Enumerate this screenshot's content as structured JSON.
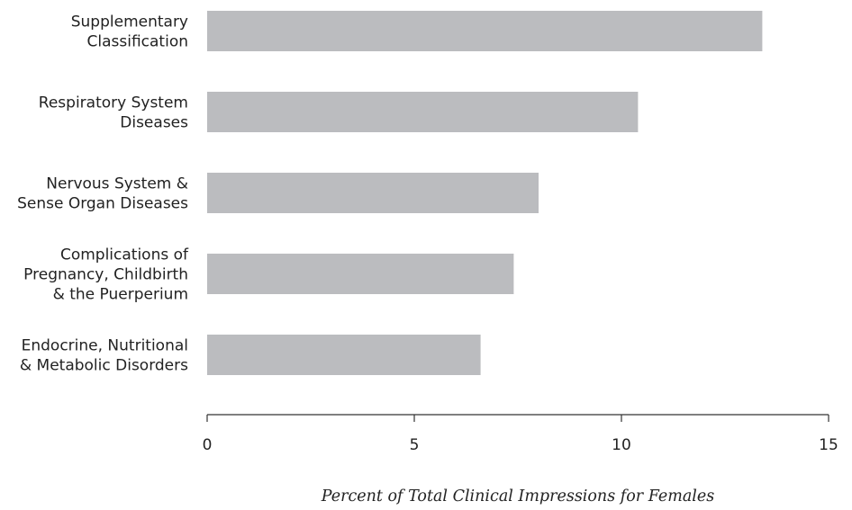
{
  "chart_data": {
    "type": "bar",
    "orientation": "horizontal",
    "categories": [
      [
        "Supplementary",
        "Classification"
      ],
      [
        "Respiratory System",
        "Diseases"
      ],
      [
        "Nervous System &",
        "Sense Organ Diseases"
      ],
      [
        "Complications of",
        "Pregnancy, Childbirth",
        "& the Puerperium"
      ],
      [
        "Endocrine, Nutritional",
        "& Metabolic Disorders"
      ]
    ],
    "values": [
      13.4,
      10.4,
      8.0,
      7.4,
      6.6
    ],
    "xlim": [
      0,
      15
    ],
    "xticks": [
      "0",
      "5",
      "10",
      "15"
    ],
    "xlabel": "Percent of Total Clinical Impressions for Females",
    "ylabel": "",
    "title": "",
    "grid": false,
    "legend": "none",
    "bar_color": "#bbbcbf"
  }
}
